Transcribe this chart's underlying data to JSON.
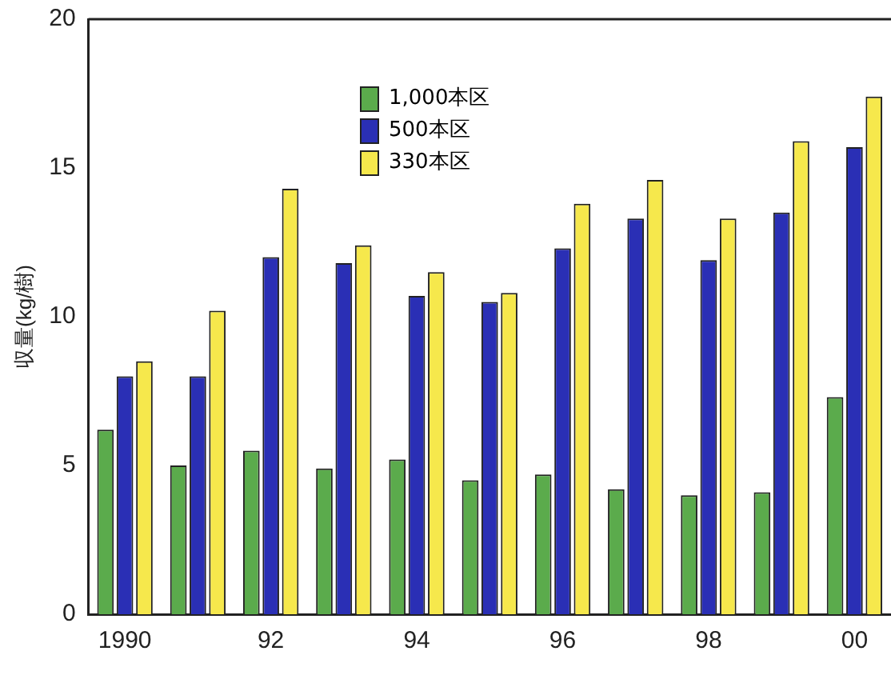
{
  "chart_data": {
    "type": "bar",
    "ylabel": "収量(kg/樹)",
    "categories": [
      "1990",
      null,
      "92",
      null,
      "94",
      null,
      "96",
      null,
      "98",
      null,
      "00"
    ],
    "series": [
      {
        "name": "1,000本区",
        "color": "#5bab4c",
        "values": [
          6.2,
          5.0,
          5.5,
          4.9,
          5.2,
          4.5,
          4.7,
          4.2,
          4.0,
          4.1,
          7.3
        ]
      },
      {
        "name": "500本区",
        "color": "#2a2fb5",
        "values": [
          8.0,
          8.0,
          12.0,
          11.8,
          10.7,
          10.5,
          12.3,
          13.3,
          11.9,
          13.5,
          15.7
        ]
      },
      {
        "name": "330本区",
        "color": "#f6e84c",
        "values": [
          8.5,
          10.2,
          14.3,
          12.4,
          11.5,
          10.8,
          13.8,
          14.6,
          13.3,
          15.9,
          17.4
        ]
      }
    ],
    "ylim": [
      0,
      20
    ],
    "yticks": [
      0,
      5,
      10,
      15,
      20
    ],
    "grid": false,
    "legend": "top left"
  }
}
